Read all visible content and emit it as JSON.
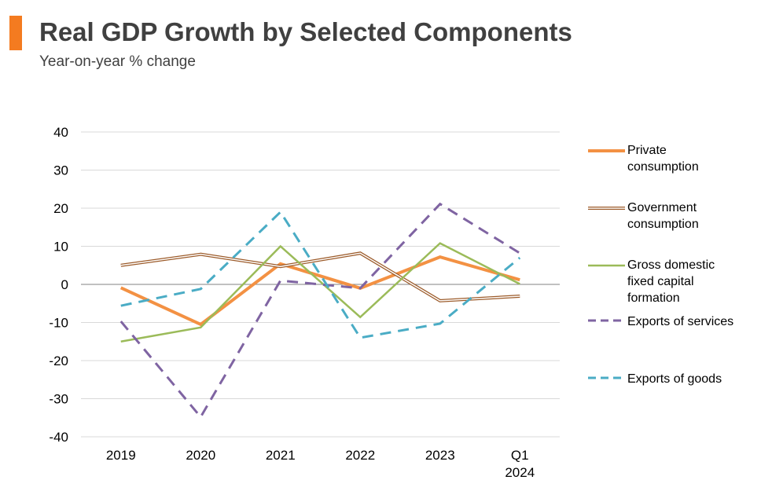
{
  "chart_data": {
    "type": "line",
    "title": "Real GDP Growth by Selected Components",
    "subtitle": "Year-on-year % change",
    "accent_color": "#f47b20",
    "categories": [
      [
        "2019"
      ],
      [
        "2020"
      ],
      [
        "2021"
      ],
      [
        "2022"
      ],
      [
        "2023"
      ],
      [
        "Q1",
        "2024"
      ]
    ],
    "ylim": [
      -40,
      40
    ],
    "yticks": [
      40,
      30,
      20,
      10,
      0,
      -10,
      -20,
      -30,
      -40
    ],
    "grid": true,
    "legend_position": "right",
    "series": [
      {
        "name": [
          "Private",
          "consumption"
        ],
        "color": "#f39143",
        "style": "solid-thick",
        "values": [
          -0.9,
          -10.5,
          5.4,
          -1.0,
          7.2,
          1.2
        ]
      },
      {
        "name": [
          "Government",
          "consumption"
        ],
        "color": "#9c5b2a",
        "style": "double",
        "values": [
          5.0,
          7.9,
          4.7,
          8.2,
          -4.3,
          -3.1
        ]
      },
      {
        "name": [
          "Gross domestic",
          "fixed capital",
          "formation"
        ],
        "color": "#9bbb59",
        "style": "solid",
        "values": [
          -15.0,
          -11.3,
          10.0,
          -8.6,
          10.8,
          0.1
        ]
      },
      {
        "name": [
          "Exports of services"
        ],
        "color": "#7f64a2",
        "style": "dashed",
        "values": [
          -9.7,
          -34.8,
          1.0,
          -1.0,
          21.1,
          8.2
        ]
      },
      {
        "name": [
          "Exports of goods"
        ],
        "color": "#4aacc5",
        "style": "dashed",
        "values": [
          -5.6,
          -1.2,
          19.0,
          -14.0,
          -10.3,
          7.0
        ]
      }
    ]
  }
}
